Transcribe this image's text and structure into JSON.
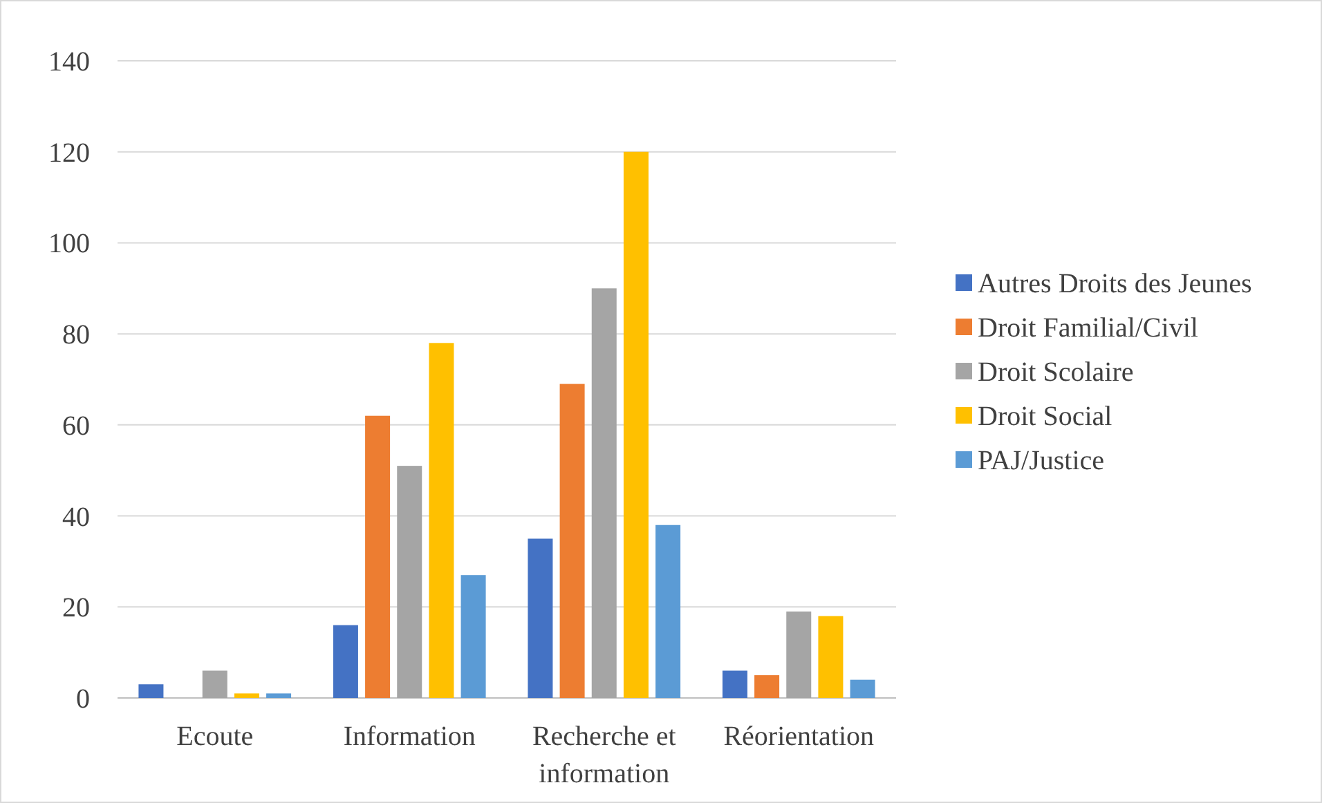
{
  "chart_data": {
    "type": "bar",
    "categories": [
      "Ecoute",
      "Information",
      "Recherche et information",
      "Réorientation"
    ],
    "series": [
      {
        "name": "Autres Droits des Jeunes",
        "color": "#4472c4",
        "values": [
          3,
          16,
          35,
          6
        ]
      },
      {
        "name": "Droit Familial/Civil",
        "color": "#ed7d31",
        "values": [
          0,
          62,
          69,
          5
        ]
      },
      {
        "name": "Droit Scolaire",
        "color": "#a5a5a5",
        "values": [
          6,
          51,
          90,
          19
        ]
      },
      {
        "name": "Droit Social",
        "color": "#ffc000",
        "values": [
          1,
          78,
          120,
          18
        ]
      },
      {
        "name": "PAJ/Justice",
        "color": "#5b9bd5",
        "values": [
          1,
          27,
          38,
          4
        ]
      }
    ],
    "ylim": [
      0,
      140
    ],
    "yticks": [
      0,
      20,
      40,
      60,
      80,
      100,
      120,
      140
    ],
    "grid": "y",
    "legend": "right"
  }
}
